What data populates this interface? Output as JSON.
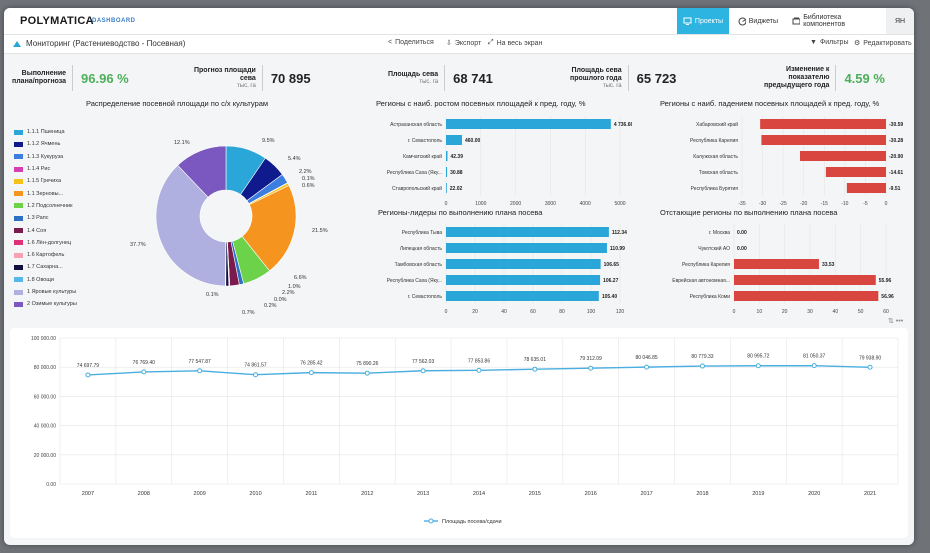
{
  "nav": {
    "logo": "POLYMATICA",
    "tag": "DASHBOARD",
    "items": [
      {
        "label": "Проекты",
        "active": true
      },
      {
        "label": "Виджеты",
        "active": false
      },
      {
        "label": "Библиотека компонентов",
        "active": false
      }
    ],
    "avatar": "ЯН"
  },
  "toolbar": {
    "title": "Мониторинг (Растениеводство - Посевная)",
    "share": "Поделиться",
    "export": "Экспорт",
    "fullscreen": "На весь экран",
    "filters": "Фильтры",
    "edit": "Редактировать"
  },
  "kpis": [
    {
      "label1": "Выполнение",
      "label2": "плана/прогноза",
      "unit": "",
      "value": "96.96 %",
      "green": true
    },
    {
      "label1": "Прогноз площади",
      "label2": "сева",
      "unit": "тыс. га",
      "value": "70 895",
      "green": false
    },
    {
      "label1": "Площадь сева",
      "label2": "",
      "unit": "тыс. га",
      "value": "68 741",
      "green": false
    },
    {
      "label1": "Площадь сева",
      "label2": "прошлого года",
      "unit": "тыс. га",
      "value": "65 723",
      "green": false
    },
    {
      "label1": "Изменение к",
      "label2": "показателю",
      "label3": "предыдущего года",
      "unit": "",
      "value": "4.59 %",
      "green": true
    }
  ],
  "pie": {
    "title": "Распределение посевной площади по с/х культурам",
    "legend": [
      {
        "label": "1.1.1 Пшеница",
        "color": "#2aa6d8"
      },
      {
        "label": "1.1.2 Ячмень",
        "color": "#0f1a8c"
      },
      {
        "label": "1.1.3 Кукуруза",
        "color": "#3c7de0"
      },
      {
        "label": "1.1.4 Рис",
        "color": "#d43fb2"
      },
      {
        "label": "1.1.5 Гречиха",
        "color": "#f5c21b"
      },
      {
        "label": "1.1 Зерновы...",
        "color": "#f5951f"
      },
      {
        "label": "1.2 Подсолнечник",
        "color": "#6cd24a"
      },
      {
        "label": "1.3 Рапс",
        "color": "#2d6fc1"
      },
      {
        "label": "1.4 Соя",
        "color": "#7a1a4d"
      },
      {
        "label": "1.6 Лён-долгунец",
        "color": "#e0307a"
      },
      {
        "label": "1.6 Картофель",
        "color": "#f7a1b3"
      },
      {
        "label": "1.7 Сахарна...",
        "color": "#101040"
      },
      {
        "label": "1.8 Овощи",
        "color": "#55b8e8"
      },
      {
        "label": "1 Яровые культуры",
        "color": "#b0b0e0"
      },
      {
        "label": "2 Озимые культуры",
        "color": "#7a58c0"
      }
    ],
    "slice_labels": [
      "9.5%",
      "5.4%",
      "2.2%",
      "0.1%",
      "0.6%",
      "21.5%",
      "6.6%",
      "1.0%",
      "2.2%",
      "0.0%",
      "0.2%",
      "0.7%",
      "0.1%",
      "37.7%",
      "12.1%"
    ]
  },
  "chart_data": [
    {
      "type": "pie",
      "title": "Распределение посевной площади по с/х культурам",
      "categories": [
        "1.1.1 Пшеница",
        "1.1.2 Ячмень",
        "1.1.3 Кукуруза",
        "1.1.4 Рис",
        "1.1.5 Гречиха",
        "1.1 Зерновы...",
        "1.2 Подсолнечник",
        "1.3 Рапс",
        "1.4 Соя",
        "1.6 Лён-долгунец",
        "1.6 Картофель",
        "1.7 Сахарна...",
        "1.8 Овощи",
        "1 Яровые культуры",
        "2 Озимые культуры"
      ],
      "values": [
        9.5,
        5.4,
        2.2,
        0.1,
        0.6,
        21.5,
        6.6,
        1.0,
        2.2,
        0.0,
        0.2,
        0.7,
        0.1,
        37.7,
        12.1
      ]
    },
    {
      "type": "bar",
      "title": "Регионы с наиб. ростом посевных площадей к пред. году, %",
      "categories": [
        "Астраханская область",
        "г. Севастополь",
        "Камчатский край",
        "Республика Саха (Яку...",
        "Ставропольский край"
      ],
      "values": [
        4736.66,
        460.0,
        42.39,
        30.88,
        22.02
      ],
      "value_labels": [
        "4 736.66",
        "460.00",
        "42.39",
        "30.88",
        "22.02"
      ],
      "xticks": [
        "0",
        "1000",
        "2000",
        "3000",
        "4000",
        "5000"
      ],
      "xlim": [
        0,
        5000
      ],
      "color": "#2aa6d8"
    },
    {
      "type": "bar",
      "title": "Регионы с наиб. падением посевных площадей к пред. году, %",
      "categories": [
        "Хабаровский край",
        "Республика Карелия",
        "Калужская область",
        "Томская область",
        "Республика Бурятия"
      ],
      "values": [
        -30.59,
        -30.28,
        -20.9,
        -14.61,
        -9.51
      ],
      "value_labels": [
        "-30.59",
        "-30.28",
        "-20.90",
        "-14.61",
        "-9.51"
      ],
      "xticks": [
        "-35",
        "-30",
        "-25",
        "-20",
        "-15",
        "-10",
        "-5",
        "0"
      ],
      "xlim": [
        -35,
        0
      ],
      "color": "#d9453f"
    },
    {
      "type": "bar",
      "title": "Регионы-лидеры по выполнению плана посева",
      "categories": [
        "Республика Тыва",
        "Липецкая область",
        "Тамбовская область",
        "Республика Саха (Яку...",
        "г. Севастополь"
      ],
      "values": [
        112.34,
        110.99,
        106.65,
        106.27,
        105.4
      ],
      "value_labels": [
        "112.34",
        "110.99",
        "106.65",
        "106.27",
        "105.40"
      ],
      "xticks": [
        "0",
        "20",
        "40",
        "60",
        "80",
        "100",
        "120"
      ],
      "xlim": [
        0,
        120
      ],
      "color": "#2aa6d8"
    },
    {
      "type": "bar",
      "title": "Отстающие регионы по выполнению плана посева",
      "categories": [
        "г. Москва",
        "Чукотский АО",
        "Республика Карелия",
        "Еврейская автономная...",
        "Республика Коми"
      ],
      "values": [
        0.0,
        0.0,
        33.53,
        55.96,
        56.96
      ],
      "value_labels": [
        "0.00",
        "0.00",
        "33.53",
        "55.96",
        "56.96"
      ],
      "xticks": [
        "0",
        "10",
        "20",
        "30",
        "40",
        "50",
        "60"
      ],
      "xlim": [
        0,
        60
      ],
      "color": "#d9453f"
    },
    {
      "type": "line",
      "x": [
        "2007",
        "2008",
        "2009",
        "2010",
        "2011",
        "2012",
        "2013",
        "2014",
        "2015",
        "2016",
        "2017",
        "2018",
        "2019",
        "2020",
        "2021"
      ],
      "values": [
        74697.79,
        76769.4,
        77547.87,
        74861.57,
        76285.42,
        75890.26,
        77562.03,
        77853.86,
        78635.01,
        79312.09,
        80046.85,
        80779.33,
        80995.72,
        81050.37,
        79938.9
      ],
      "value_labels": [
        "74 697.79",
        "76 769.40",
        "77 547.87",
        "74 861.57",
        "76 285.42",
        "75 890.26",
        "77 562.03",
        "77 853.86",
        "78 635.01",
        "79 312.09",
        "80 046.85",
        "80 779.33",
        "80 995.72",
        "81 050.37",
        "79 938.90"
      ],
      "yticks": [
        "0.00",
        "20 000.00",
        "40 000.00",
        "60 000.00",
        "80 000.00",
        "100 000.00"
      ],
      "ylim": [
        0,
        100000
      ],
      "series_name": "Площадь посева/сдачи",
      "color": "#4aaee0"
    }
  ]
}
